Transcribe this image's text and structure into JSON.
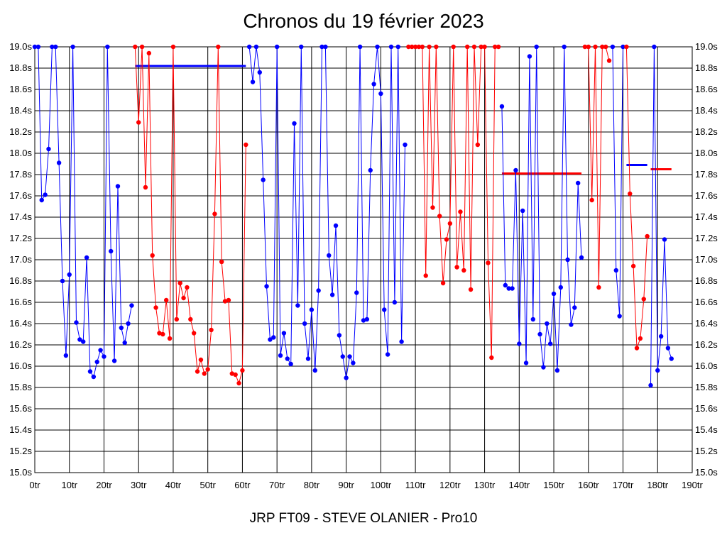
{
  "chart_data": {
    "type": "line",
    "title": "Chronos du 19 février 2023",
    "subtitle": "JRP FT09 - STEVE OLANIER - Pro10",
    "xlabel": "",
    "ylabel": "",
    "xlim": [
      0,
      190
    ],
    "ylim": [
      15.0,
      19.0
    ],
    "x_tick_step": 10,
    "y_tick_step": 0.2,
    "x_tick_suffix": "tr",
    "y_tick_suffix": "s",
    "grid": true,
    "legend": "none",
    "colors": {
      "blue": "#0000ff",
      "red": "#ff0000"
    },
    "series": [
      {
        "color": "#0000ff",
        "points": [
          [
            0,
            19.0
          ],
          [
            1,
            19.0
          ],
          [
            2,
            17.56
          ],
          [
            3,
            17.61
          ],
          [
            4,
            18.04
          ],
          [
            5,
            19.0
          ],
          [
            6,
            19.0
          ],
          [
            7,
            17.91
          ],
          [
            8,
            16.8
          ],
          [
            9,
            16.1
          ],
          [
            10,
            16.86
          ],
          [
            11,
            19.0
          ],
          [
            12,
            16.41
          ],
          [
            13,
            16.25
          ],
          [
            14,
            16.23
          ],
          [
            15,
            17.02
          ],
          [
            16,
            15.95
          ],
          [
            17,
            15.9
          ],
          [
            18,
            16.04
          ],
          [
            19,
            16.15
          ],
          [
            20,
            16.09
          ],
          [
            21,
            19.0
          ],
          [
            22,
            17.08
          ],
          [
            23,
            16.05
          ],
          [
            24,
            17.69
          ],
          [
            25,
            16.36
          ],
          [
            26,
            16.22
          ],
          [
            27,
            16.4
          ],
          [
            28,
            16.57
          ]
        ]
      },
      {
        "color": "#ff0000",
        "points": [
          [
            29,
            19.0
          ],
          [
            30,
            18.29
          ],
          [
            31,
            19.0
          ],
          [
            32,
            17.68
          ],
          [
            33,
            18.94
          ],
          [
            34,
            17.04
          ],
          [
            35,
            16.55
          ],
          [
            36,
            16.31
          ],
          [
            37,
            16.3
          ],
          [
            38,
            16.62
          ],
          [
            39,
            16.26
          ],
          [
            40,
            19.0
          ],
          [
            41,
            16.44
          ],
          [
            42,
            16.78
          ],
          [
            43,
            16.64
          ],
          [
            44,
            16.74
          ],
          [
            45,
            16.44
          ],
          [
            46,
            16.31
          ],
          [
            47,
            15.95
          ],
          [
            48,
            16.06
          ],
          [
            49,
            15.93
          ],
          [
            50,
            15.97
          ],
          [
            51,
            16.34
          ],
          [
            52,
            17.43
          ],
          [
            53,
            19.0
          ],
          [
            54,
            16.98
          ],
          [
            55,
            16.61
          ],
          [
            56,
            16.62
          ],
          [
            57,
            15.93
          ],
          [
            58,
            15.92
          ],
          [
            59,
            15.84
          ],
          [
            60,
            15.96
          ],
          [
            61,
            18.08
          ]
        ]
      },
      {
        "color": "#0000ff",
        "points": [
          [
            62,
            19.0
          ],
          [
            63,
            18.67
          ],
          [
            64,
            19.0
          ],
          [
            65,
            18.76
          ],
          [
            66,
            17.75
          ],
          [
            67,
            16.75
          ],
          [
            68,
            16.25
          ],
          [
            69,
            16.27
          ],
          [
            70,
            19.0
          ],
          [
            71,
            16.1
          ],
          [
            72,
            16.31
          ],
          [
            73,
            16.07
          ],
          [
            74,
            16.02
          ],
          [
            75,
            18.28
          ],
          [
            76,
            16.57
          ],
          [
            77,
            19.0
          ],
          [
            78,
            16.4
          ],
          [
            79,
            16.07
          ],
          [
            80,
            16.53
          ],
          [
            81,
            15.96
          ],
          [
            82,
            16.71
          ],
          [
            83,
            19.0
          ],
          [
            84,
            19.0
          ],
          [
            85,
            17.04
          ],
          [
            86,
            16.67
          ],
          [
            87,
            17.32
          ],
          [
            88,
            16.29
          ],
          [
            89,
            16.09
          ],
          [
            90,
            15.89
          ],
          [
            91,
            16.09
          ],
          [
            92,
            16.03
          ],
          [
            93,
            16.69
          ],
          [
            94,
            19.0
          ],
          [
            95,
            16.43
          ],
          [
            96,
            16.44
          ],
          [
            97,
            17.84
          ],
          [
            98,
            18.65
          ],
          [
            99,
            19.0
          ],
          [
            100,
            18.56
          ],
          [
            101,
            16.53
          ],
          [
            102,
            16.11
          ],
          [
            103,
            19.0
          ],
          [
            104,
            16.6
          ],
          [
            105,
            19.0
          ],
          [
            106,
            16.23
          ],
          [
            107,
            18.08
          ]
        ]
      },
      {
        "color": "#ff0000",
        "points": [
          [
            108,
            19.0
          ],
          [
            109,
            19.0
          ],
          [
            110,
            19.0
          ],
          [
            111,
            19.0
          ],
          [
            112,
            19.0
          ],
          [
            113,
            16.85
          ],
          [
            114,
            19.0
          ],
          [
            115,
            17.49
          ],
          [
            116,
            19.0
          ],
          [
            117,
            17.41
          ],
          [
            118,
            16.78
          ],
          [
            119,
            17.19
          ],
          [
            120,
            17.34
          ],
          [
            121,
            19.0
          ],
          [
            122,
            16.93
          ],
          [
            123,
            17.45
          ],
          [
            124,
            16.9
          ],
          [
            125,
            19.0
          ],
          [
            126,
            16.72
          ],
          [
            127,
            19.0
          ],
          [
            128,
            18.08
          ],
          [
            129,
            19.0
          ],
          [
            130,
            19.0
          ],
          [
            131,
            16.97
          ],
          [
            132,
            16.08
          ],
          [
            133,
            19.0
          ],
          [
            134,
            19.0
          ]
        ]
      },
      {
        "color": "#0000ff",
        "points": [
          [
            135,
            18.44
          ],
          [
            136,
            16.76
          ],
          [
            137,
            16.73
          ],
          [
            138,
            16.73
          ],
          [
            139,
            17.84
          ],
          [
            140,
            16.21
          ],
          [
            141,
            17.46
          ],
          [
            142,
            16.03
          ],
          [
            143,
            18.91
          ],
          [
            144,
            16.44
          ],
          [
            145,
            19.0
          ],
          [
            146,
            16.3
          ],
          [
            147,
            15.99
          ],
          [
            148,
            16.4
          ],
          [
            149,
            16.21
          ],
          [
            150,
            16.68
          ],
          [
            151,
            15.96
          ],
          [
            152,
            16.74
          ],
          [
            153,
            19.0
          ],
          [
            154,
            17.0
          ],
          [
            155,
            16.39
          ],
          [
            156,
            16.55
          ],
          [
            157,
            17.72
          ],
          [
            158,
            17.02
          ]
        ]
      },
      {
        "color": "#ff0000",
        "points": [
          [
            159,
            19.0
          ],
          [
            160,
            19.0
          ],
          [
            161,
            17.56
          ],
          [
            162,
            19.0
          ],
          [
            163,
            16.74
          ],
          [
            164,
            19.0
          ],
          [
            165,
            19.0
          ],
          [
            166,
            18.87
          ]
        ]
      },
      {
        "color": "#0000ff",
        "points": [
          [
            167,
            19.0
          ],
          [
            168,
            16.9
          ],
          [
            169,
            16.47
          ],
          [
            170,
            19.0
          ]
        ]
      },
      {
        "color": "#ff0000",
        "points": [
          [
            171,
            19.0
          ],
          [
            172,
            17.62
          ],
          [
            173,
            16.94
          ],
          [
            174,
            16.17
          ],
          [
            175,
            16.26
          ],
          [
            176,
            16.63
          ],
          [
            177,
            17.22
          ]
        ]
      },
      {
        "color": "#0000ff",
        "points": [
          [
            178,
            15.82
          ],
          [
            179,
            19.0
          ],
          [
            180,
            15.96
          ],
          [
            181,
            16.28
          ],
          [
            182,
            17.19
          ],
          [
            183,
            16.17
          ],
          [
            184,
            16.07
          ]
        ]
      }
    ],
    "average_lines": [
      {
        "color": "#0000ff",
        "x": [
          29,
          61
        ],
        "y": 18.82
      },
      {
        "color": "#ff0000",
        "x": [
          135,
          158
        ],
        "y": 17.81
      },
      {
        "color": "#0000ff",
        "x": [
          171,
          177
        ],
        "y": 17.89
      },
      {
        "color": "#ff0000",
        "x": [
          178,
          184
        ],
        "y": 17.85
      }
    ]
  }
}
